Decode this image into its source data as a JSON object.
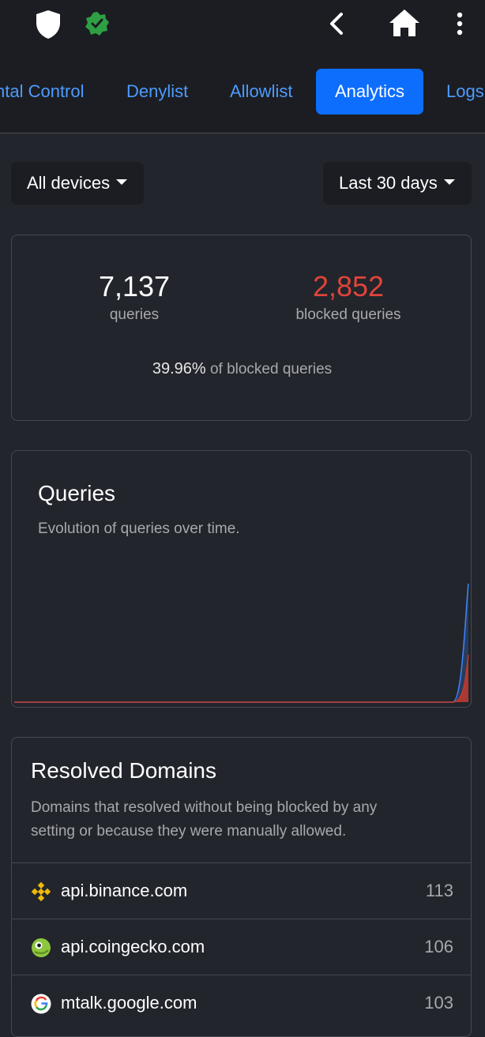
{
  "toolbar": {
    "icons": [
      "shield-icon",
      "verified-badge-icon",
      "back-arrow-icon",
      "home-icon",
      "more-vert-icon"
    ]
  },
  "tabs": [
    {
      "label": "ntal Control",
      "active": false
    },
    {
      "label": "Denylist",
      "active": false
    },
    {
      "label": "Allowlist",
      "active": false
    },
    {
      "label": "Analytics",
      "active": true
    },
    {
      "label": "Logs",
      "active": false
    }
  ],
  "filters": {
    "device": "All devices",
    "period": "Last 30 days"
  },
  "stats": {
    "queries_value": "7,137",
    "queries_label": "queries",
    "blocked_value": "2,852",
    "blocked_label": "blocked queries",
    "percent_value": "39.96%",
    "percent_label": "of blocked queries",
    "blocked_color": "#e0443a"
  },
  "queries_card": {
    "title": "Queries",
    "subtitle": "Evolution of queries over time."
  },
  "chart_data": {
    "type": "area",
    "x": [
      1,
      2,
      3,
      4,
      5,
      6,
      7,
      8,
      9,
      10,
      11,
      12,
      13,
      14,
      15,
      16,
      17,
      18,
      19,
      20,
      21,
      22,
      23,
      24,
      25,
      26,
      27,
      28,
      29,
      30
    ],
    "series": [
      {
        "values": [
          0,
          0,
          0,
          0,
          0,
          0,
          0,
          0,
          0,
          0,
          0,
          0,
          0,
          0,
          0,
          0,
          0,
          0,
          0,
          0,
          0,
          0,
          0,
          0,
          0,
          0,
          0,
          0,
          0,
          7137
        ],
        "color": "#3b82f6"
      },
      {
        "values": [
          0,
          0,
          0,
          0,
          0,
          0,
          0,
          0,
          0,
          0,
          0,
          0,
          0,
          0,
          0,
          0,
          0,
          0,
          0,
          0,
          0,
          0,
          0,
          0,
          0,
          0,
          0,
          0,
          0,
          2852
        ],
        "color": "#c0392b"
      }
    ],
    "ylim": [
      0,
      7137
    ],
    "grid": false,
    "legend": "none"
  },
  "resolved": {
    "title": "Resolved Domains",
    "subtitle_line1": "Domains that resolved without being blocked by any",
    "subtitle_line2": "setting or because they were manually allowed.",
    "items": [
      {
        "domain": "api.binance.com",
        "count": "113",
        "icon": "binance-icon"
      },
      {
        "domain": "api.coingecko.com",
        "count": "106",
        "icon": "coingecko-icon"
      },
      {
        "domain": "mtalk.google.com",
        "count": "103",
        "icon": "google-icon"
      }
    ]
  }
}
